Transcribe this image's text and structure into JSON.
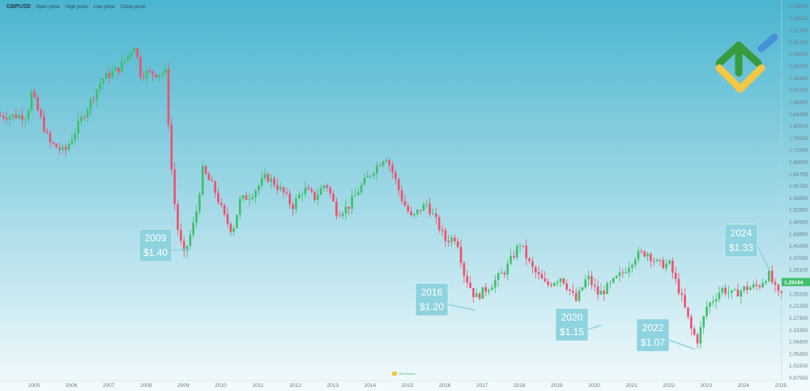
{
  "legend": {
    "symbol": "GBPUSD",
    "open_label": "Open price:",
    "high_label": "High price:",
    "low_label": "Low price:",
    "close_label": "Close price:"
  },
  "watermark": {
    "text": "LiteFinance"
  },
  "colors": {
    "up": "#3fbf6a",
    "down": "#f0506e",
    "callout": "#8fd3df",
    "current_price_bg": "#3fbf6a",
    "bg_top": "#4ab5cf",
    "bg_bottom": "#f4fbfd",
    "logo_green": "#3a9a3f",
    "logo_yellow": "#f2c744",
    "logo_blue": "#4a90d9"
  },
  "chart_data": {
    "type": "candlestick",
    "x_tick_labels": [
      "2005",
      "2006",
      "2007",
      "2008",
      "2009",
      "2010",
      "2011",
      "2012",
      "2013",
      "2014",
      "2015",
      "2016",
      "2017",
      "2018",
      "2019",
      "2020",
      "2021",
      "2022",
      "2023",
      "2024",
      "2025"
    ],
    "y_tick_labels": [
      "2.20000",
      "2.16050",
      "2.12100",
      "2.08150",
      "2.04200",
      "2.00250",
      "1.96300",
      "1.92350",
      "1.88400",
      "1.84450",
      "1.80500",
      "1.76550",
      "1.72600",
      "1.68650",
      "1.64700",
      "1.60750",
      "1.56800",
      "1.52850",
      "1.48900",
      "1.44950",
      "1.41000",
      "1.37050",
      "1.33100",
      "1.29150",
      "1.25200",
      "1.21250",
      "1.17300",
      "1.13350",
      "1.09400",
      "1.05450",
      "1.01500",
      "0.97550"
    ],
    "ylim": [
      0.9755,
      2.2
    ],
    "current_price": "1.29184",
    "current_value": 1.29184,
    "path": [
      [
        2004.9,
        1.84
      ],
      [
        2005.0,
        1.92
      ],
      [
        2005.5,
        1.75
      ],
      [
        2005.9,
        1.72
      ],
      [
        2006.4,
        1.84
      ],
      [
        2006.9,
        1.96
      ],
      [
        2007.4,
        2.0
      ],
      [
        2007.8,
        2.08
      ],
      [
        2007.9,
        1.98
      ],
      [
        2008.6,
        1.98
      ],
      [
        2008.8,
        1.6
      ],
      [
        2008.95,
        1.45
      ],
      [
        2009.1,
        1.38
      ],
      [
        2009.4,
        1.5
      ],
      [
        2009.6,
        1.66
      ],
      [
        2009.9,
        1.6
      ],
      [
        2010.2,
        1.5
      ],
      [
        2010.4,
        1.46
      ],
      [
        2010.6,
        1.56
      ],
      [
        2010.9,
        1.58
      ],
      [
        2011.3,
        1.64
      ],
      [
        2011.5,
        1.62
      ],
      [
        2011.8,
        1.58
      ],
      [
        2012.0,
        1.54
      ],
      [
        2012.3,
        1.6
      ],
      [
        2012.6,
        1.57
      ],
      [
        2012.9,
        1.62
      ],
      [
        2013.2,
        1.52
      ],
      [
        2013.5,
        1.54
      ],
      [
        2013.8,
        1.6
      ],
      [
        2014.1,
        1.65
      ],
      [
        2014.5,
        1.71
      ],
      [
        2014.7,
        1.65
      ],
      [
        2014.95,
        1.56
      ],
      [
        2015.2,
        1.5
      ],
      [
        2015.4,
        1.53
      ],
      [
        2015.6,
        1.55
      ],
      [
        2015.9,
        1.48
      ],
      [
        2016.1,
        1.43
      ],
      [
        2016.4,
        1.44
      ],
      [
        2016.6,
        1.32
      ],
      [
        2016.9,
        1.24
      ],
      [
        2017.3,
        1.28
      ],
      [
        2017.7,
        1.33
      ],
      [
        2018.1,
        1.42
      ],
      [
        2018.4,
        1.34
      ],
      [
        2018.8,
        1.28
      ],
      [
        2019.2,
        1.31
      ],
      [
        2019.6,
        1.23
      ],
      [
        2019.9,
        1.31
      ],
      [
        2020.2,
        1.25
      ],
      [
        2020.5,
        1.28
      ],
      [
        2020.9,
        1.33
      ],
      [
        2021.2,
        1.38
      ],
      [
        2021.5,
        1.39
      ],
      [
        2021.8,
        1.35
      ],
      [
        2022.1,
        1.35
      ],
      [
        2022.4,
        1.25
      ],
      [
        2022.7,
        1.13
      ],
      [
        2022.85,
        1.1
      ],
      [
        2023.1,
        1.21
      ],
      [
        2023.5,
        1.27
      ],
      [
        2023.8,
        1.25
      ],
      [
        2024.1,
        1.27
      ],
      [
        2024.5,
        1.28
      ],
      [
        2024.75,
        1.32
      ],
      [
        2025.0,
        1.25
      ]
    ],
    "annotations": [
      {
        "year": "2009",
        "price": "$1.40",
        "x": 2009.2,
        "y": 1.4
      },
      {
        "year": "2016",
        "price": "$1.20",
        "x": 2016.8,
        "y": 1.2
      },
      {
        "year": "2020",
        "price": "$1.15",
        "x": 2020.2,
        "y": 1.15
      },
      {
        "year": "2022",
        "price": "$1.07",
        "x": 2022.7,
        "y": 1.07
      },
      {
        "year": "2024",
        "price": "$1.33",
        "x": 2024.7,
        "y": 1.33
      }
    ]
  }
}
